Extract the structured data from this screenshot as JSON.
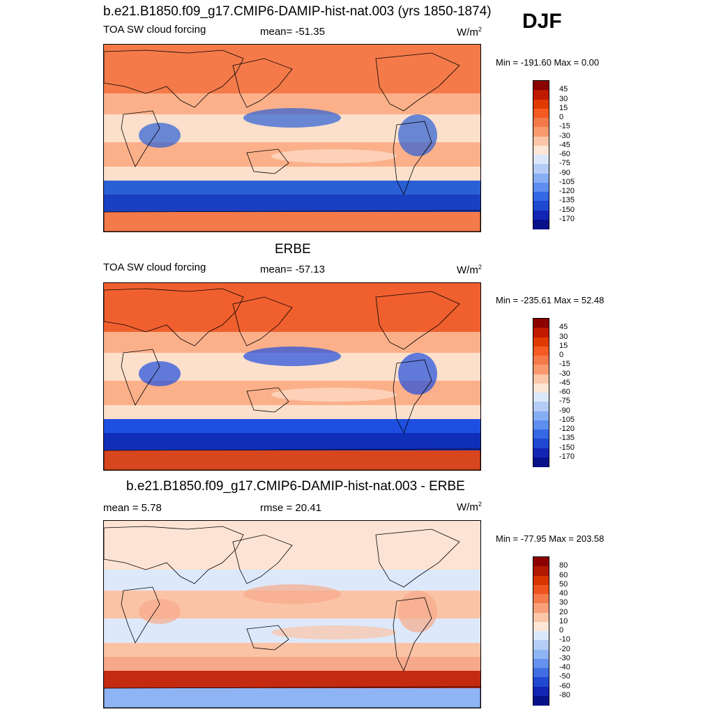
{
  "season": "DJF",
  "panels": [
    {
      "title": "b.e21.B1850.f09_g17.CMIP6-DAMIP-hist-nat.003 (yrs 1850-1874)",
      "left_label": "TOA SW cloud forcing",
      "mid_label": "mean= -51.35",
      "units_base": "W/m",
      "units_sup": "2",
      "minmax": "Min = -191.60 Max =   0.00",
      "colors": {
        "land": "#f47a4a",
        "subtrop": "#fbb08a",
        "strat": "#fde0cc",
        "midlat": "#2a5fd6",
        "deep": "#1a3fc0",
        "ice": "#f47a4a"
      }
    },
    {
      "title": "ERBE",
      "left_label": "TOA SW cloud forcing",
      "mid_label": "mean= -57.13",
      "units_base": "W/m",
      "units_sup": "2",
      "minmax": "Min = -235.61 Max =  52.48",
      "colors": {
        "land": "#f0602e",
        "subtrop": "#fbb08a",
        "strat": "#fde0cc",
        "midlat": "#1e4fe0",
        "deep": "#0f2fb8",
        "ice": "#d8461e"
      }
    },
    {
      "title": "b.e21.B1850.f09_g17.CMIP6-DAMIP-hist-nat.003 - ERBE",
      "left_label": "mean =   5.78",
      "mid_label": "rmse =  20.41",
      "units_base": "W/m",
      "units_sup": "2",
      "minmax": "Min = -77.95 Max = 203.58",
      "colors": {
        "land": "#fde3d3",
        "subtrop": "#dde9fb",
        "strat": "#fbc3a5",
        "midlat": "#f6a98a",
        "deep": "#c42a10",
        "ice": "#8fb4f4"
      }
    }
  ],
  "chart_data": [
    {
      "type": "heatmap",
      "title": "b.e21.B1850.f09_g17.CMIP6-DAMIP-hist-nat.003 (yrs 1850-1874)",
      "variable": "TOA SW cloud forcing",
      "units": "W/m2",
      "mean": -51.35,
      "min": -191.6,
      "max": 0.0,
      "colorbar_levels": [
        45,
        30,
        15,
        0,
        -15,
        -30,
        -45,
        -60,
        -75,
        -90,
        -105,
        -120,
        -135,
        -150,
        -170
      ],
      "colorbar_colors": [
        "#8b0000",
        "#c01a00",
        "#e03a00",
        "#f55a24",
        "#f47a4a",
        "#f99a6e",
        "#fcc6a8",
        "#fde6d6",
        "#dbe8fb",
        "#b5cdf6",
        "#86aef2",
        "#5e8ff0",
        "#3468e4",
        "#1f48d2",
        "#1225b4",
        "#07118a"
      ]
    },
    {
      "type": "heatmap",
      "title": "ERBE",
      "variable": "TOA SW cloud forcing",
      "units": "W/m2",
      "mean": -57.13,
      "min": -235.61,
      "max": 52.48,
      "colorbar_levels": [
        45,
        30,
        15,
        0,
        -15,
        -30,
        -45,
        -60,
        -75,
        -90,
        -105,
        -120,
        -135,
        -150,
        -170
      ],
      "colorbar_colors": [
        "#8b0000",
        "#c01a00",
        "#e03a00",
        "#f55a24",
        "#f47a4a",
        "#f99a6e",
        "#fcc6a8",
        "#fde6d6",
        "#dbe8fb",
        "#b5cdf6",
        "#86aef2",
        "#5e8ff0",
        "#3468e4",
        "#1f48d2",
        "#1225b4",
        "#07118a"
      ]
    },
    {
      "type": "heatmap",
      "title": "b.e21.B1850.f09_g17.CMIP6-DAMIP-hist-nat.003 - ERBE",
      "units": "W/m2",
      "mean": 5.78,
      "rmse": 20.41,
      "min": -77.95,
      "max": 203.58,
      "colorbar_levels": [
        80,
        60,
        50,
        40,
        30,
        20,
        10,
        0,
        -10,
        -20,
        -30,
        -40,
        -50,
        -60,
        -80
      ],
      "colorbar_colors": [
        "#8b0000",
        "#b01800",
        "#d83400",
        "#ee5420",
        "#f57a4c",
        "#f9a07a",
        "#fcc6a8",
        "#fde6d6",
        "#dbe8fb",
        "#b5cdf6",
        "#8fb4f4",
        "#6592ee",
        "#3f6ee2",
        "#2148d0",
        "#1225b4",
        "#07118a"
      ]
    }
  ]
}
